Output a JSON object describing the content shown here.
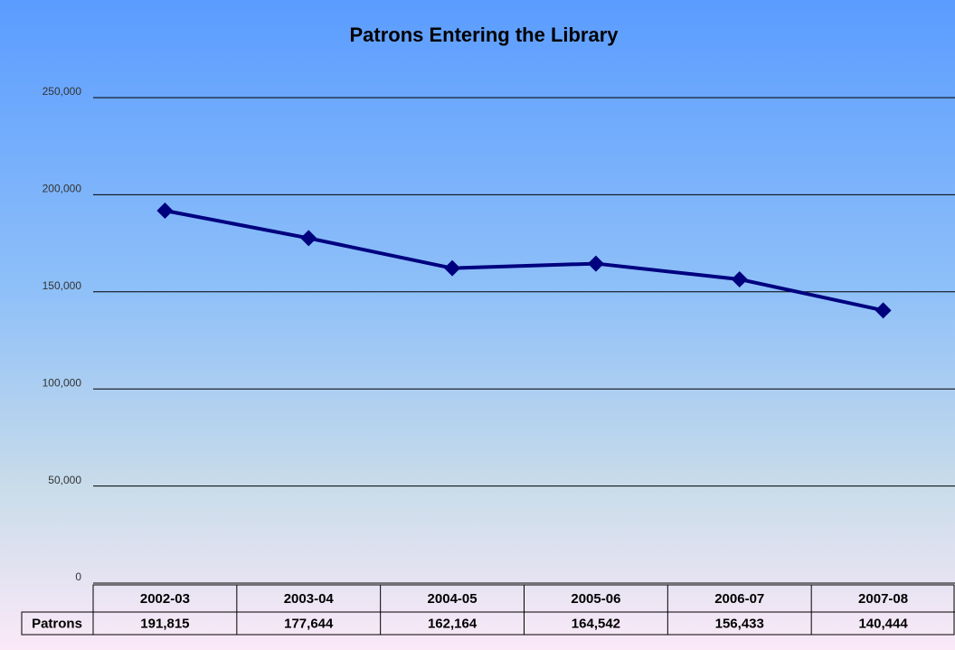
{
  "chart_data": {
    "type": "line",
    "title": "Patrons Entering the Library",
    "categories": [
      "2002-03",
      "2003-04",
      "2004-05",
      "2005-06",
      "2006-07",
      "2007-08"
    ],
    "series": [
      {
        "name": "Patrons",
        "color": "#00007f",
        "values": [
          191815,
          177644,
          162164,
          164542,
          156433,
          140444
        ],
        "value_labels": [
          "191,815",
          "177,644",
          "162,164",
          "164,542",
          "156,433",
          "140,444"
        ]
      }
    ],
    "ylim": [
      0,
      250000
    ],
    "yticks": [
      0,
      {
        "value": 50000,
        "label": "50,000"
      },
      {
        "value": 100000,
        "label": "100,000"
      },
      {
        "value": 150000,
        "label": "150,000"
      },
      {
        "value": 200000,
        "label": "200,000"
      },
      {
        "value": 250000,
        "label": "250,000"
      }
    ],
    "grid": true
  }
}
